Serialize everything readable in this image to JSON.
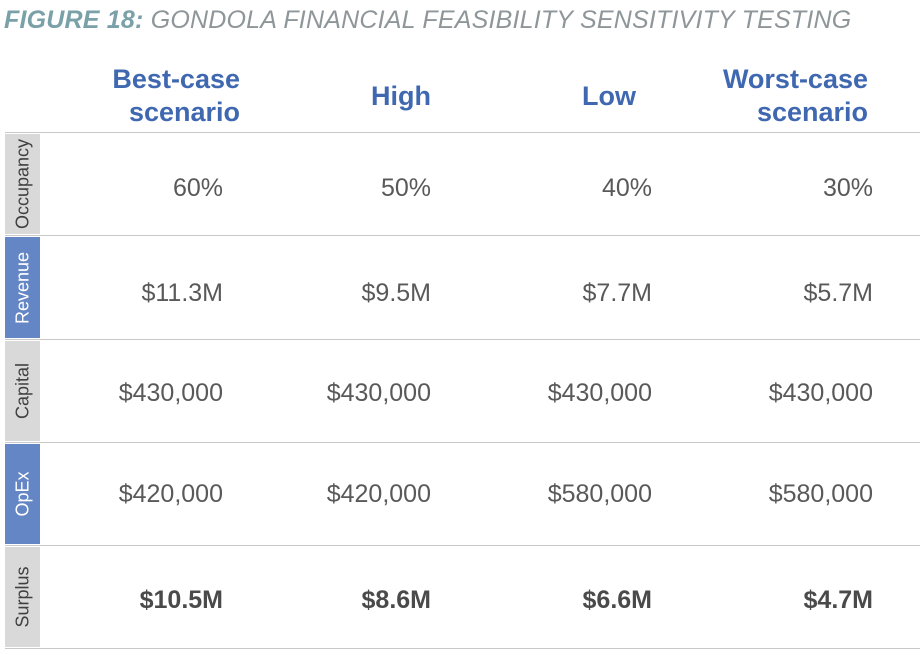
{
  "figure": {
    "label": "FIGURE 18:",
    "title": "GONDOLA FINANCIAL FEASIBILITY SENSITIVITY TESTING"
  },
  "columns": [
    {
      "line1": "Best-case",
      "line2": "scenario"
    },
    {
      "line1": "",
      "line2": "High"
    },
    {
      "line1": "",
      "line2": "Low"
    },
    {
      "line1": "Worst-case",
      "line2": "scenario"
    }
  ],
  "rows": [
    {
      "label": "Occupancy",
      "highlight": false,
      "bold": false,
      "values": [
        "60%",
        "50%",
        "40%",
        "30%"
      ]
    },
    {
      "label": "Revenue",
      "highlight": true,
      "bold": false,
      "values": [
        "$11.3M",
        "$9.5M",
        "$7.7M",
        "$5.7M"
      ]
    },
    {
      "label": "Capital",
      "highlight": false,
      "bold": false,
      "values": [
        "$430,000",
        "$430,000",
        "$430,000",
        "$430,000"
      ]
    },
    {
      "label": "OpEx",
      "highlight": true,
      "bold": false,
      "values": [
        "$420,000",
        "$420,000",
        "$580,000",
        "$580,000"
      ]
    },
    {
      "label": "Surplus",
      "highlight": false,
      "bold": true,
      "values": [
        "$10.5M",
        "$8.6M",
        "$6.6M",
        "$4.7M"
      ]
    }
  ],
  "colors": {
    "title_label": "#7aa0a8",
    "title_text": "#8e9699",
    "header_text": "#3f68b0",
    "label_gray": "#d9d9d9",
    "label_blue": "#6586c4"
  }
}
